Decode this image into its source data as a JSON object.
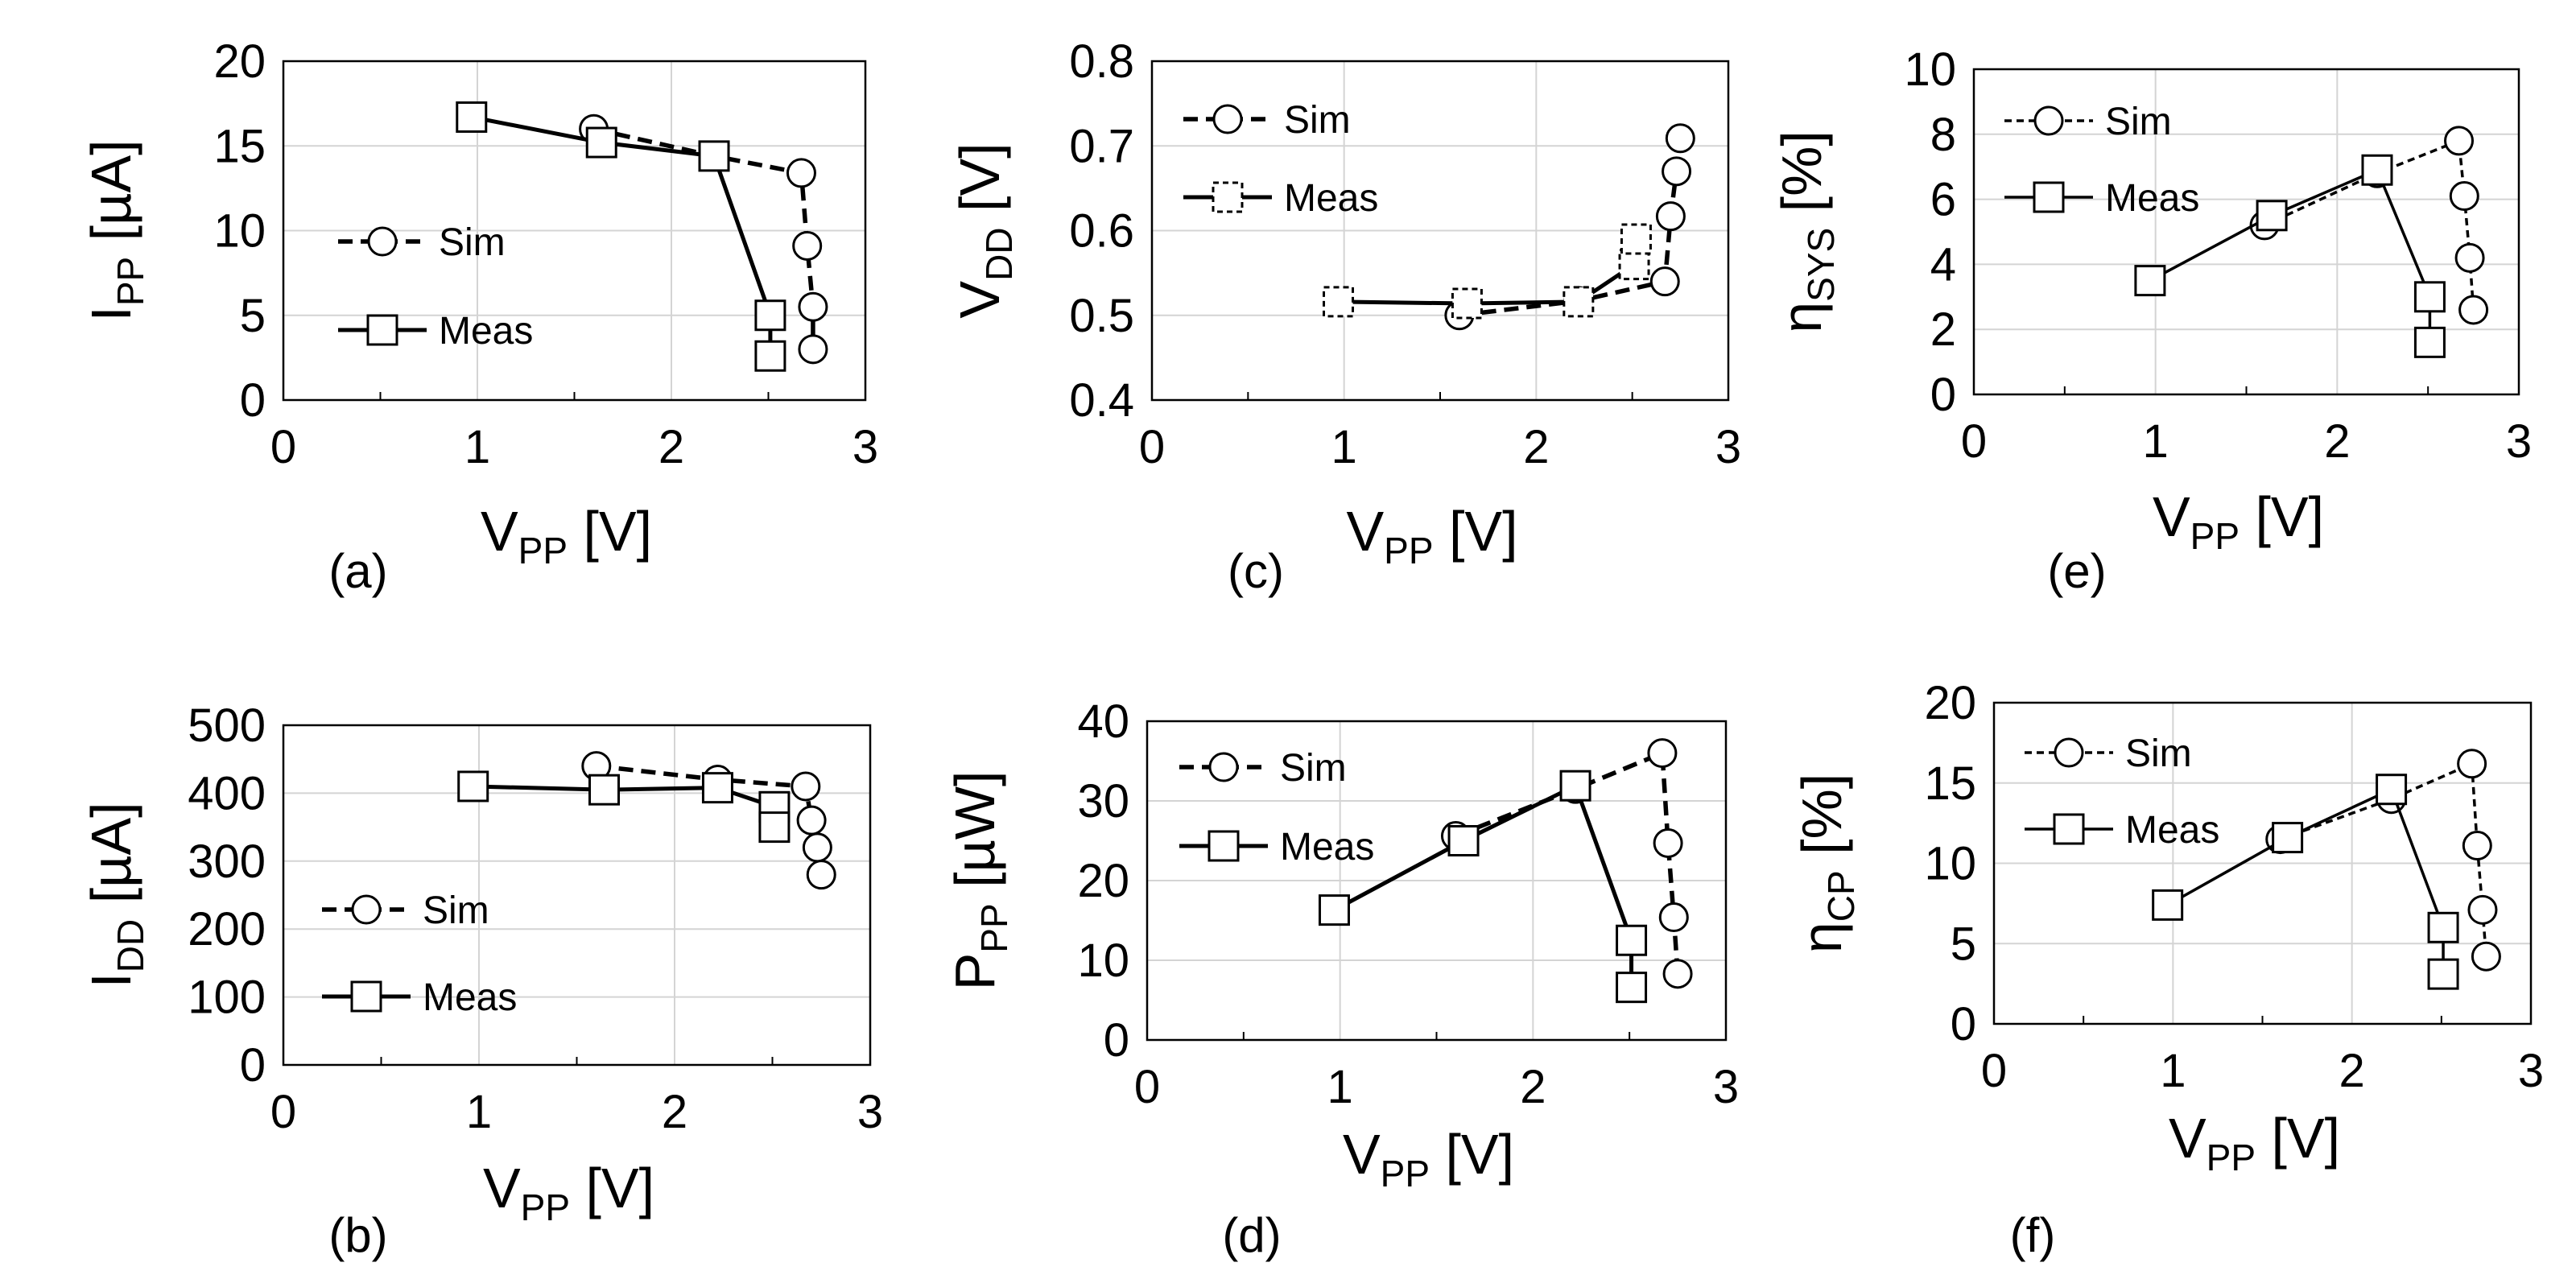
{
  "figure": {
    "xaxis": {
      "base": "V",
      "sub": "PP",
      "unit": " [V]"
    },
    "legend": {
      "sim": "Sim",
      "meas": "Meas"
    },
    "colors": {
      "line": "#000000",
      "grid": "#d4d4d4",
      "background": "#ffffff"
    }
  },
  "chart_data": [
    {
      "id": "a",
      "caption": "(a)",
      "type": "line",
      "ylabel": {
        "base": "I",
        "sub": "PP",
        "unit": " [µA]"
      },
      "xlim": [
        0,
        3
      ],
      "ylim": [
        0,
        20
      ],
      "xticks": [
        0,
        1,
        2,
        3
      ],
      "yticks": [
        0,
        5,
        10,
        15,
        20
      ],
      "legend_position": "middle-left",
      "sim_dash": "thick",
      "series": [
        {
          "name": "Sim",
          "marker": "circle",
          "line": "dashed",
          "points": [
            [
              1.6,
              16.0
            ],
            [
              2.22,
              14.4
            ],
            [
              2.67,
              13.4
            ],
            [
              2.7,
              9.1
            ],
            [
              2.73,
              5.5
            ],
            [
              2.73,
              3.0
            ]
          ]
        },
        {
          "name": "Meas",
          "marker": "square",
          "line": "solid",
          "points": [
            [
              0.97,
              16.7
            ],
            [
              1.64,
              15.2
            ],
            [
              2.22,
              14.4
            ],
            [
              2.51,
              5.0
            ],
            [
              2.51,
              2.6
            ]
          ]
        }
      ]
    },
    {
      "id": "c",
      "caption": "(c)",
      "type": "line",
      "ylabel": {
        "base": "V",
        "sub": "DD",
        "unit": " [V]"
      },
      "xlim": [
        0,
        3
      ],
      "ylim": [
        0.4,
        0.8
      ],
      "xticks": [
        0,
        1,
        2,
        3
      ],
      "yticks": [
        0.4,
        0.5,
        0.6,
        0.7,
        0.8
      ],
      "legend_position": "top-left",
      "sim_dash": "thick",
      "meas_marker_style": "dashed",
      "series": [
        {
          "name": "Sim",
          "marker": "circle",
          "line": "dashed",
          "points": [
            [
              1.6,
              0.5
            ],
            [
              2.22,
              0.517
            ],
            [
              2.67,
              0.54
            ],
            [
              2.7,
              0.617
            ],
            [
              2.73,
              0.67
            ],
            [
              2.75,
              0.709
            ]
          ]
        },
        {
          "name": "Meas",
          "marker": "square",
          "line": "solid",
          "points": [
            [
              0.97,
              0.516
            ],
            [
              1.64,
              0.514
            ],
            [
              2.22,
              0.516
            ],
            [
              2.51,
              0.56
            ],
            [
              2.52,
              0.59
            ]
          ]
        }
      ]
    },
    {
      "id": "e",
      "caption": "(e)",
      "type": "line",
      "ylabel": {
        "base": "η",
        "sub": "SYS",
        "unit": " [%]"
      },
      "xlim": [
        0,
        3
      ],
      "ylim": [
        0,
        10
      ],
      "xticks": [
        0,
        1,
        2,
        3
      ],
      "yticks": [
        0,
        2,
        4,
        6,
        8,
        10
      ],
      "legend_position": "top-left",
      "sim_dash": "fine",
      "series": [
        {
          "name": "Sim",
          "marker": "circle",
          "line": "dashed",
          "points": [
            [
              1.6,
              5.2
            ],
            [
              2.22,
              6.8
            ],
            [
              2.67,
              7.8
            ],
            [
              2.7,
              6.1
            ],
            [
              2.73,
              4.2
            ],
            [
              2.75,
              2.6
            ]
          ]
        },
        {
          "name": "Meas",
          "marker": "square",
          "line": "solid",
          "points": [
            [
              0.97,
              3.5
            ],
            [
              1.64,
              5.5
            ],
            [
              2.22,
              6.9
            ],
            [
              2.51,
              3.0
            ],
            [
              2.51,
              1.6
            ]
          ]
        }
      ]
    },
    {
      "id": "b",
      "caption": "(b)",
      "type": "line",
      "ylabel": {
        "base": "I",
        "sub": "DD",
        "unit": " [µA]"
      },
      "xlim": [
        0,
        3
      ],
      "ylim": [
        0,
        500
      ],
      "xticks": [
        0,
        1,
        2,
        3
      ],
      "yticks": [
        0,
        100,
        200,
        300,
        400,
        500
      ],
      "legend_position": "middle-left",
      "sim_dash": "thick",
      "series": [
        {
          "name": "Sim",
          "marker": "circle",
          "line": "dashed",
          "points": [
            [
              1.6,
              440
            ],
            [
              2.22,
              420
            ],
            [
              2.67,
              410
            ],
            [
              2.7,
              360
            ],
            [
              2.73,
              320
            ],
            [
              2.75,
              280
            ]
          ]
        },
        {
          "name": "Meas",
          "marker": "square",
          "line": "solid",
          "points": [
            [
              0.97,
              410
            ],
            [
              1.64,
              405
            ],
            [
              2.22,
              408
            ],
            [
              2.51,
              380
            ],
            [
              2.51,
              350
            ]
          ]
        }
      ]
    },
    {
      "id": "d",
      "caption": "(d)",
      "type": "line",
      "ylabel": {
        "base": "P",
        "sub": "PP",
        "unit": " [µW]"
      },
      "xlim": [
        0,
        3
      ],
      "ylim": [
        0,
        40
      ],
      "xticks": [
        0,
        1,
        2,
        3
      ],
      "yticks": [
        0,
        10,
        20,
        30,
        40
      ],
      "legend_position": "top-left",
      "sim_dash": "thick",
      "series": [
        {
          "name": "Sim",
          "marker": "circle",
          "line": "dashed",
          "points": [
            [
              1.6,
              25.6
            ],
            [
              2.22,
              31.5
            ],
            [
              2.67,
              36.0
            ],
            [
              2.7,
              24.7
            ],
            [
              2.73,
              15.4
            ],
            [
              2.75,
              8.3
            ]
          ]
        },
        {
          "name": "Meas",
          "marker": "square",
          "line": "solid",
          "points": [
            [
              0.97,
              16.3
            ],
            [
              1.64,
              25.0
            ],
            [
              2.22,
              31.9
            ],
            [
              2.51,
              12.5
            ],
            [
              2.51,
              6.6
            ]
          ]
        }
      ]
    },
    {
      "id": "f",
      "caption": "(f)",
      "type": "line",
      "ylabel": {
        "base": "η",
        "sub": "CP",
        "unit": " [%]"
      },
      "xlim": [
        0,
        3
      ],
      "ylim": [
        0,
        20
      ],
      "xticks": [
        0,
        1,
        2,
        3
      ],
      "yticks": [
        0,
        5,
        10,
        15,
        20
      ],
      "legend_position": "top-left",
      "sim_dash": "fine",
      "series": [
        {
          "name": "Sim",
          "marker": "circle",
          "line": "dashed",
          "points": [
            [
              1.6,
              11.5
            ],
            [
              2.22,
              14.0
            ],
            [
              2.67,
              16.2
            ],
            [
              2.7,
              11.1
            ],
            [
              2.73,
              7.1
            ],
            [
              2.75,
              4.2
            ]
          ]
        },
        {
          "name": "Meas",
          "marker": "square",
          "line": "solid",
          "points": [
            [
              0.97,
              7.4
            ],
            [
              1.64,
              11.6
            ],
            [
              2.22,
              14.6
            ],
            [
              2.51,
              6.0
            ],
            [
              2.51,
              3.1
            ]
          ]
        }
      ]
    }
  ]
}
